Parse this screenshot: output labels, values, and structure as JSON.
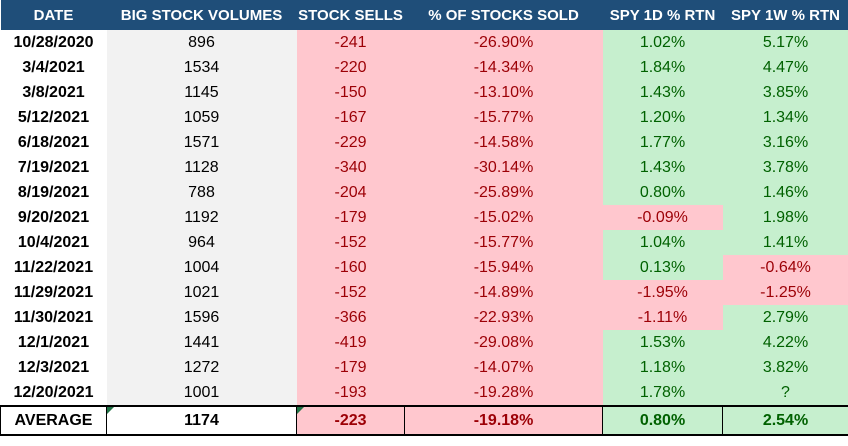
{
  "headers": [
    "DATE",
    "BIG STOCK VOLUMES",
    "STOCK SELLS",
    "% OF STOCKS SOLD",
    "SPY 1D % RTN",
    "SPY 1W % RTN"
  ],
  "rows": [
    {
      "date": "10/28/2020",
      "volume": "896",
      "sells": "-241",
      "pct_sold": "-26.90%",
      "spy_1d": "1.02%",
      "spy_1d_sign": "pos",
      "spy_1w": "5.17%",
      "spy_1w_sign": "pos"
    },
    {
      "date": "3/4/2021",
      "volume": "1534",
      "sells": "-220",
      "pct_sold": "-14.34%",
      "spy_1d": "1.84%",
      "spy_1d_sign": "pos",
      "spy_1w": "4.47%",
      "spy_1w_sign": "pos"
    },
    {
      "date": "3/8/2021",
      "volume": "1145",
      "sells": "-150",
      "pct_sold": "-13.10%",
      "spy_1d": "1.43%",
      "spy_1d_sign": "pos",
      "spy_1w": "3.85%",
      "spy_1w_sign": "pos"
    },
    {
      "date": "5/12/2021",
      "volume": "1059",
      "sells": "-167",
      "pct_sold": "-15.77%",
      "spy_1d": "1.20%",
      "spy_1d_sign": "pos",
      "spy_1w": "1.34%",
      "spy_1w_sign": "pos"
    },
    {
      "date": "6/18/2021",
      "volume": "1571",
      "sells": "-229",
      "pct_sold": "-14.58%",
      "spy_1d": "1.77%",
      "spy_1d_sign": "pos",
      "spy_1w": "3.16%",
      "spy_1w_sign": "pos"
    },
    {
      "date": "7/19/2021",
      "volume": "1128",
      "sells": "-340",
      "pct_sold": "-30.14%",
      "spy_1d": "1.43%",
      "spy_1d_sign": "pos",
      "spy_1w": "3.78%",
      "spy_1w_sign": "pos"
    },
    {
      "date": "8/19/2021",
      "volume": "788",
      "sells": "-204",
      "pct_sold": "-25.89%",
      "spy_1d": "0.80%",
      "spy_1d_sign": "pos",
      "spy_1w": "1.46%",
      "spy_1w_sign": "pos"
    },
    {
      "date": "9/20/2021",
      "volume": "1192",
      "sells": "-179",
      "pct_sold": "-15.02%",
      "spy_1d": "-0.09%",
      "spy_1d_sign": "neg",
      "spy_1w": "1.98%",
      "spy_1w_sign": "pos"
    },
    {
      "date": "10/4/2021",
      "volume": "964",
      "sells": "-152",
      "pct_sold": "-15.77%",
      "spy_1d": "1.04%",
      "spy_1d_sign": "pos",
      "spy_1w": "1.41%",
      "spy_1w_sign": "pos"
    },
    {
      "date": "11/22/2021",
      "volume": "1004",
      "sells": "-160",
      "pct_sold": "-15.94%",
      "spy_1d": "0.13%",
      "spy_1d_sign": "pos",
      "spy_1w": "-0.64%",
      "spy_1w_sign": "neg"
    },
    {
      "date": "11/29/2021",
      "volume": "1021",
      "sells": "-152",
      "pct_sold": "-14.89%",
      "spy_1d": "-1.95%",
      "spy_1d_sign": "neg",
      "spy_1w": "-1.25%",
      "spy_1w_sign": "neg"
    },
    {
      "date": "11/30/2021",
      "volume": "1596",
      "sells": "-366",
      "pct_sold": "-22.93%",
      "spy_1d": "-1.11%",
      "spy_1d_sign": "neg",
      "spy_1w": "2.79%",
      "spy_1w_sign": "pos"
    },
    {
      "date": "12/1/2021",
      "volume": "1441",
      "sells": "-419",
      "pct_sold": "-29.08%",
      "spy_1d": "1.53%",
      "spy_1d_sign": "pos",
      "spy_1w": "4.22%",
      "spy_1w_sign": "pos"
    },
    {
      "date": "12/3/2021",
      "volume": "1272",
      "sells": "-179",
      "pct_sold": "-14.07%",
      "spy_1d": "1.18%",
      "spy_1d_sign": "pos",
      "spy_1w": "3.82%",
      "spy_1w_sign": "pos"
    },
    {
      "date": "12/20/2021",
      "volume": "1001",
      "sells": "-193",
      "pct_sold": "-19.28%",
      "spy_1d": "1.78%",
      "spy_1d_sign": "pos",
      "spy_1w": "?",
      "spy_1w_sign": "pos"
    }
  ],
  "average": {
    "label": "AVERAGE",
    "volume": "1174",
    "sells": "-223",
    "pct_sold": "-19.18%",
    "spy_1d": "0.80%",
    "spy_1w": "2.54%"
  },
  "colors": {
    "header_bg": "#1f4e79",
    "header_text": "#ffffff",
    "negative_fill": "#ffc7ce",
    "negative_text": "#9c0006",
    "positive_fill": "#c6efce",
    "positive_text": "#006100",
    "volume_fill": "#f2f2f2",
    "error_indicator": "#217346"
  }
}
